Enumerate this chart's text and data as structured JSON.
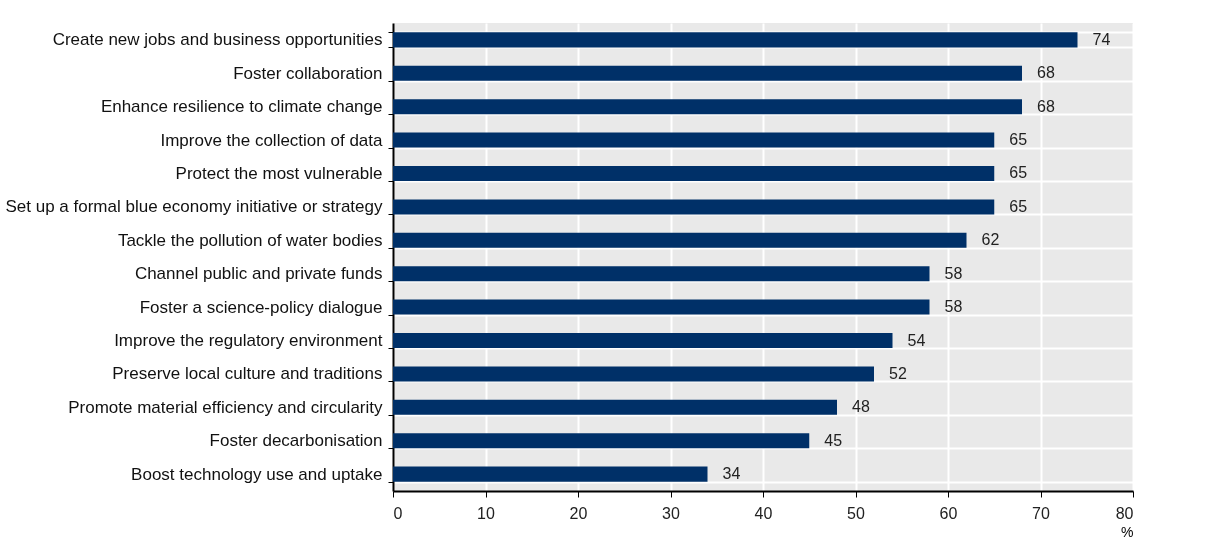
{
  "chart_data": {
    "type": "bar",
    "orientation": "horizontal",
    "xlabel": "%",
    "categories": [
      "Create new jobs and business opportunities",
      "Foster collaboration",
      "Enhance resilience to climate change",
      "Improve the collection of data",
      "Protect the most vulnerable",
      "Set up a formal blue economy initiative or strategy",
      "Tackle the pollution of water bodies",
      "Channel public and private funds",
      "Foster a science-policy dialogue",
      "Improve the regulatory environment",
      "Preserve local culture and traditions",
      "Promote material efficiency and circularity",
      "Foster decarbonisation",
      "Boost technology use and uptake"
    ],
    "values": [
      74,
      68,
      68,
      65,
      65,
      65,
      62,
      58,
      58,
      54,
      52,
      48,
      45,
      34
    ],
    "color": "#003068",
    "xlim": [
      0,
      80
    ],
    "xticks": [
      0,
      10,
      20,
      30,
      40,
      50,
      60,
      70,
      80
    ],
    "grid": true,
    "data_labels": true
  }
}
